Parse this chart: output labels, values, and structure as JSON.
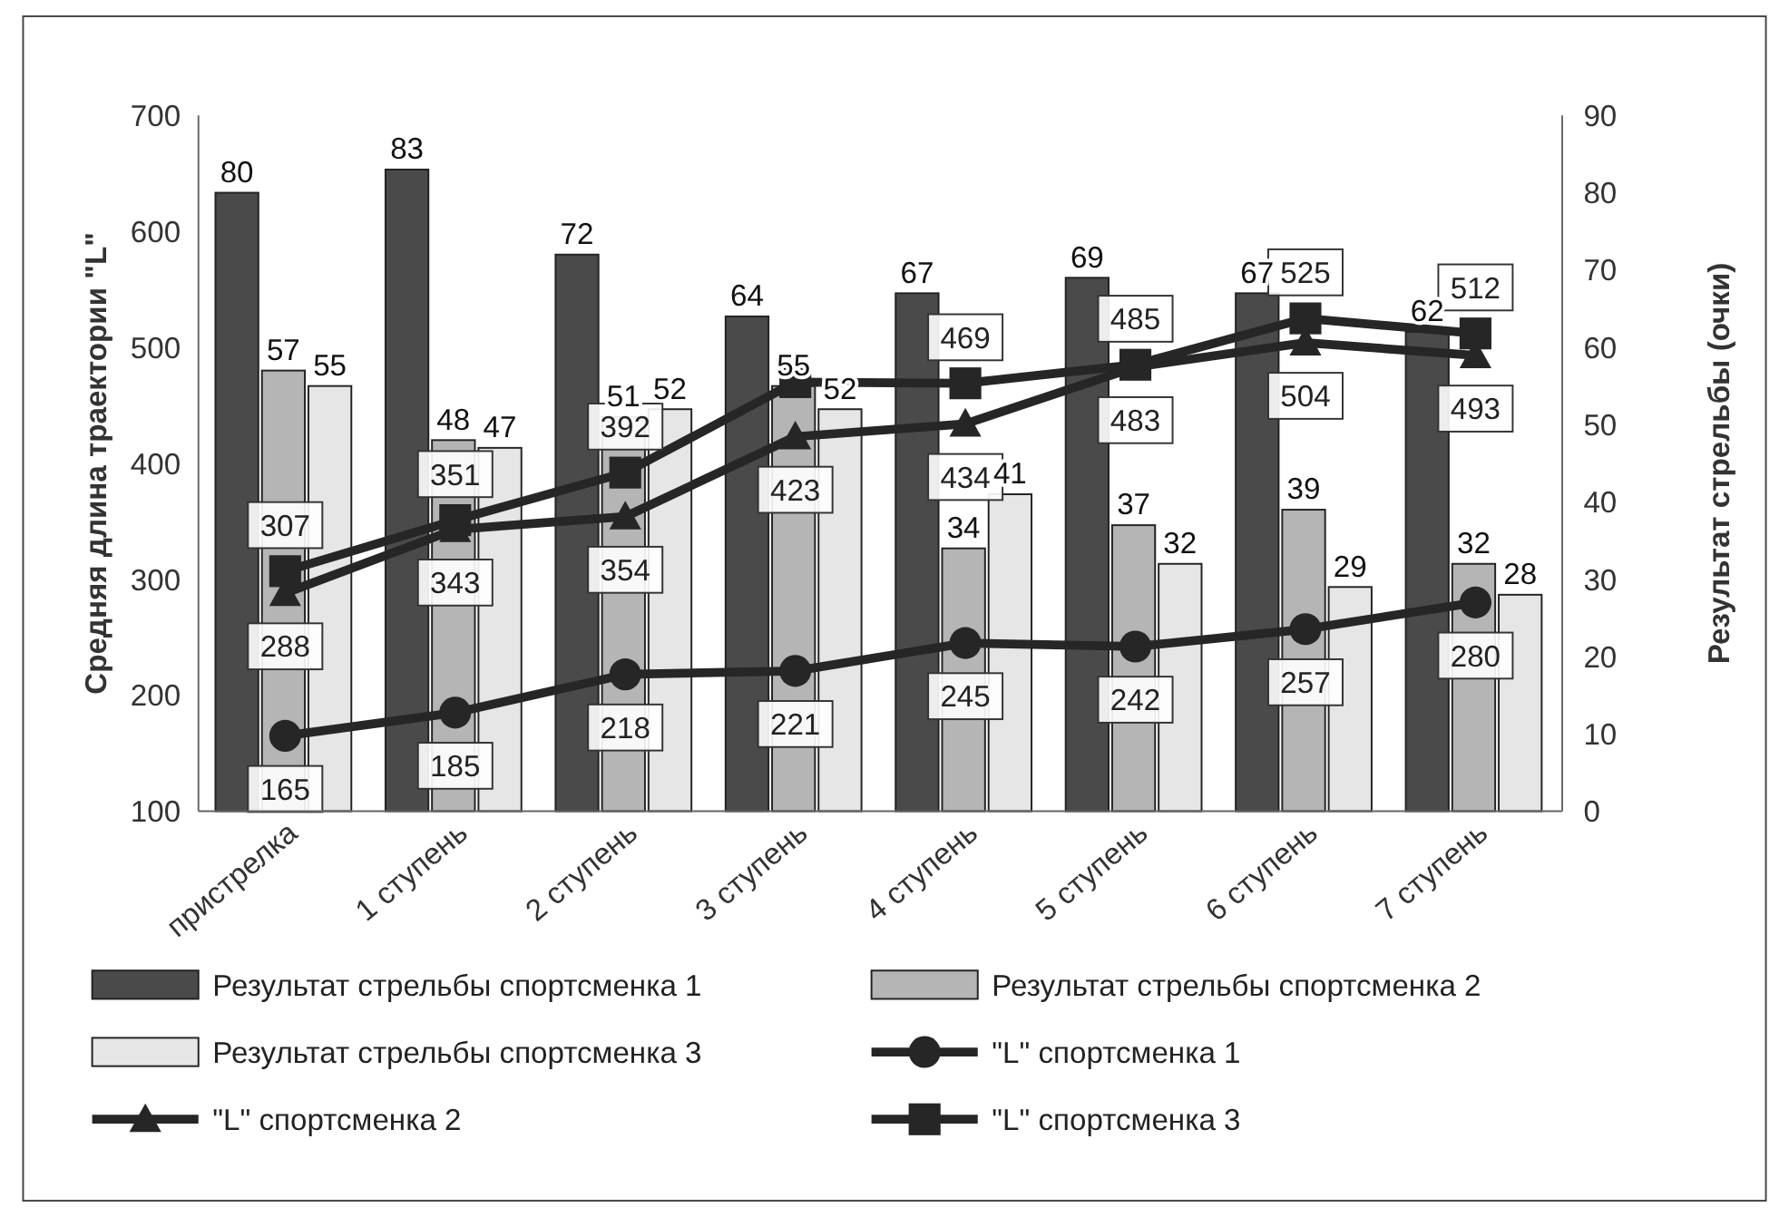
{
  "chart_data": {
    "type": "bar",
    "categories": [
      "пристрелка",
      "1 ступень",
      "2 ступень",
      "3 ступень",
      "4 ступень",
      "5 ступень",
      "6 ступень",
      "7 ступень"
    ],
    "ylabel": "Средняя длина траектории \"L\"",
    "y2label": "Результат стрельбы (очки)",
    "ylim": [
      100,
      700
    ],
    "yticks": [
      100,
      200,
      300,
      400,
      500,
      600,
      700
    ],
    "y2lim": [
      0,
      90
    ],
    "y2ticks": [
      0,
      10,
      20,
      30,
      40,
      50,
      60,
      70,
      80,
      90
    ],
    "grid": false,
    "legend": "bottom",
    "data_labels": true,
    "series": [
      {
        "name": "Результат стрельбы спортсменка 1",
        "color": "#4a4a4a",
        "axis": "y2",
        "values": [
          80,
          83,
          72,
          64,
          67,
          69,
          67,
          62
        ]
      },
      {
        "name": "Результат стрельбы спортсменка 2",
        "color": "#b5b5b5",
        "axis": "y2",
        "values": [
          57,
          48,
          51,
          55,
          34,
          37,
          39,
          32
        ]
      },
      {
        "name": "Результат стрельбы спортсменка 3",
        "color": "#e6e6e6",
        "axis": "y2",
        "values": [
          55,
          47,
          52,
          52,
          41,
          32,
          29,
          28
        ]
      },
      {
        "name": "\"L\" спортсменка 1",
        "type": "line",
        "marker": "circle",
        "color": "#262626",
        "values": [
          165,
          185,
          218,
          221,
          245,
          242,
          257,
          280
        ]
      },
      {
        "name": "\"L\" спортсменка 2",
        "type": "line",
        "marker": "triangle",
        "color": "#262626",
        "values": [
          288,
          343,
          354,
          423,
          434,
          483,
          504,
          493
        ]
      },
      {
        "name": "\"L\" спортсменка 3",
        "type": "line",
        "marker": "square",
        "color": "#262626",
        "values": [
          307,
          351,
          392,
          470,
          469,
          485,
          525,
          512
        ],
        "value_labels": [
          "307",
          "351",
          "392",
          null,
          "469",
          "485",
          "525",
          "512"
        ]
      }
    ]
  }
}
